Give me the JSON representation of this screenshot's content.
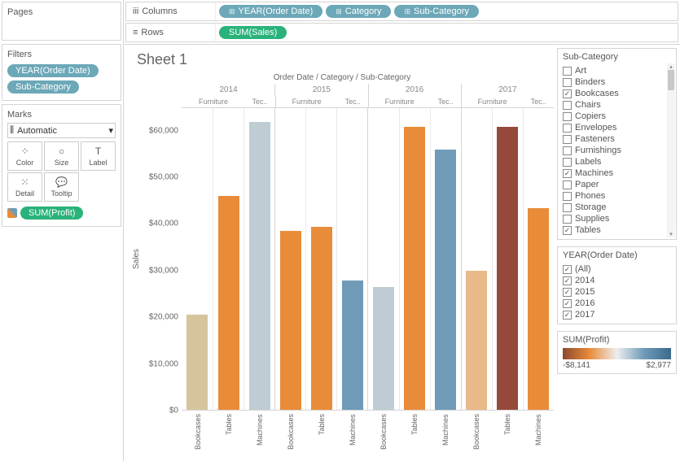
{
  "left": {
    "pages_title": "Pages",
    "filters_title": "Filters",
    "filters": [
      {
        "label": "YEAR(Order Date)"
      },
      {
        "label": "Sub-Category"
      }
    ],
    "marks_title": "Marks",
    "marks_dropdown": "Automatic",
    "marks_buttons": [
      {
        "name": "color",
        "label": "Color"
      },
      {
        "name": "size",
        "label": "Size"
      },
      {
        "name": "label",
        "label": "Label"
      },
      {
        "name": "detail",
        "label": "Detail"
      },
      {
        "name": "tooltip",
        "label": "Tooltip"
      }
    ],
    "marks_pill": "SUM(Profit)"
  },
  "shelves": {
    "columns_label": "Columns",
    "rows_label": "Rows",
    "columns": [
      {
        "label": "YEAR(Order Date)",
        "expand": true
      },
      {
        "label": "Category",
        "expand": true
      },
      {
        "label": "Sub-Category",
        "expand": true
      }
    ],
    "rows": [
      {
        "label": "SUM(Sales)",
        "green": true
      }
    ]
  },
  "sheet": {
    "title": "Sheet 1",
    "subtitle": "Order Date / Category / Sub-Category",
    "y_label": "Sales",
    "y_max": 65000,
    "y_ticks": [
      "$60,000",
      "$50,000",
      "$40,000",
      "$30,000",
      "$20,000",
      "$10,000",
      "$0"
    ],
    "years": [
      "2014",
      "2015",
      "2016",
      "2017"
    ],
    "categories": [
      "Furniture",
      "Tec.."
    ],
    "furn_subs": 2,
    "tech_subs": 1,
    "bars": [
      {
        "value": 20500,
        "color": "#d6c49d",
        "label": "Bookcases",
        "year_start": true
      },
      {
        "value": 46000,
        "color": "#e98c3a",
        "label": "Tables"
      },
      {
        "value": 62000,
        "color": "#bfccd3",
        "label": "Machines"
      },
      {
        "value": 38500,
        "color": "#e98c3a",
        "label": "Bookcases",
        "year_start": true
      },
      {
        "value": 39500,
        "color": "#e98c3a",
        "label": "Tables"
      },
      {
        "value": 27800,
        "color": "#6f9bb8",
        "label": "Machines"
      },
      {
        "value": 26500,
        "color": "#bfccd3",
        "label": "Bookcases",
        "year_start": true
      },
      {
        "value": 61000,
        "color": "#e98c3a",
        "label": "Tables"
      },
      {
        "value": 56000,
        "color": "#6f9bb8",
        "label": "Machines"
      },
      {
        "value": 30000,
        "color": "#eab98a",
        "label": "Bookcases",
        "year_start": true
      },
      {
        "value": 61000,
        "color": "#96493a",
        "label": "Tables"
      },
      {
        "value": 43500,
        "color": "#e98c3a",
        "label": "Machines"
      }
    ]
  },
  "filters_panel": {
    "subcat_title": "Sub-Category",
    "subcats": [
      {
        "label": "Art",
        "checked": false
      },
      {
        "label": "Binders",
        "checked": false
      },
      {
        "label": "Bookcases",
        "checked": true
      },
      {
        "label": "Chairs",
        "checked": false
      },
      {
        "label": "Copiers",
        "checked": false
      },
      {
        "label": "Envelopes",
        "checked": false
      },
      {
        "label": "Fasteners",
        "checked": false
      },
      {
        "label": "Furnishings",
        "checked": false
      },
      {
        "label": "Labels",
        "checked": false
      },
      {
        "label": "Machines",
        "checked": true
      },
      {
        "label": "Paper",
        "checked": false
      },
      {
        "label": "Phones",
        "checked": false
      },
      {
        "label": "Storage",
        "checked": false
      },
      {
        "label": "Supplies",
        "checked": false
      },
      {
        "label": "Tables",
        "checked": true
      }
    ],
    "year_title": "YEAR(Order Date)",
    "years": [
      {
        "label": "(All)",
        "checked": true
      },
      {
        "label": "2014",
        "checked": true
      },
      {
        "label": "2015",
        "checked": true
      },
      {
        "label": "2016",
        "checked": true
      },
      {
        "label": "2017",
        "checked": true
      }
    ],
    "profit_title": "SUM(Profit)",
    "profit_min": "-$8,141",
    "profit_max": "$2,977",
    "gradient_colors": [
      "#8b4a2e",
      "#e98c3a",
      "#eeeeee",
      "#6f9bb8",
      "#3a6a8a"
    ]
  }
}
